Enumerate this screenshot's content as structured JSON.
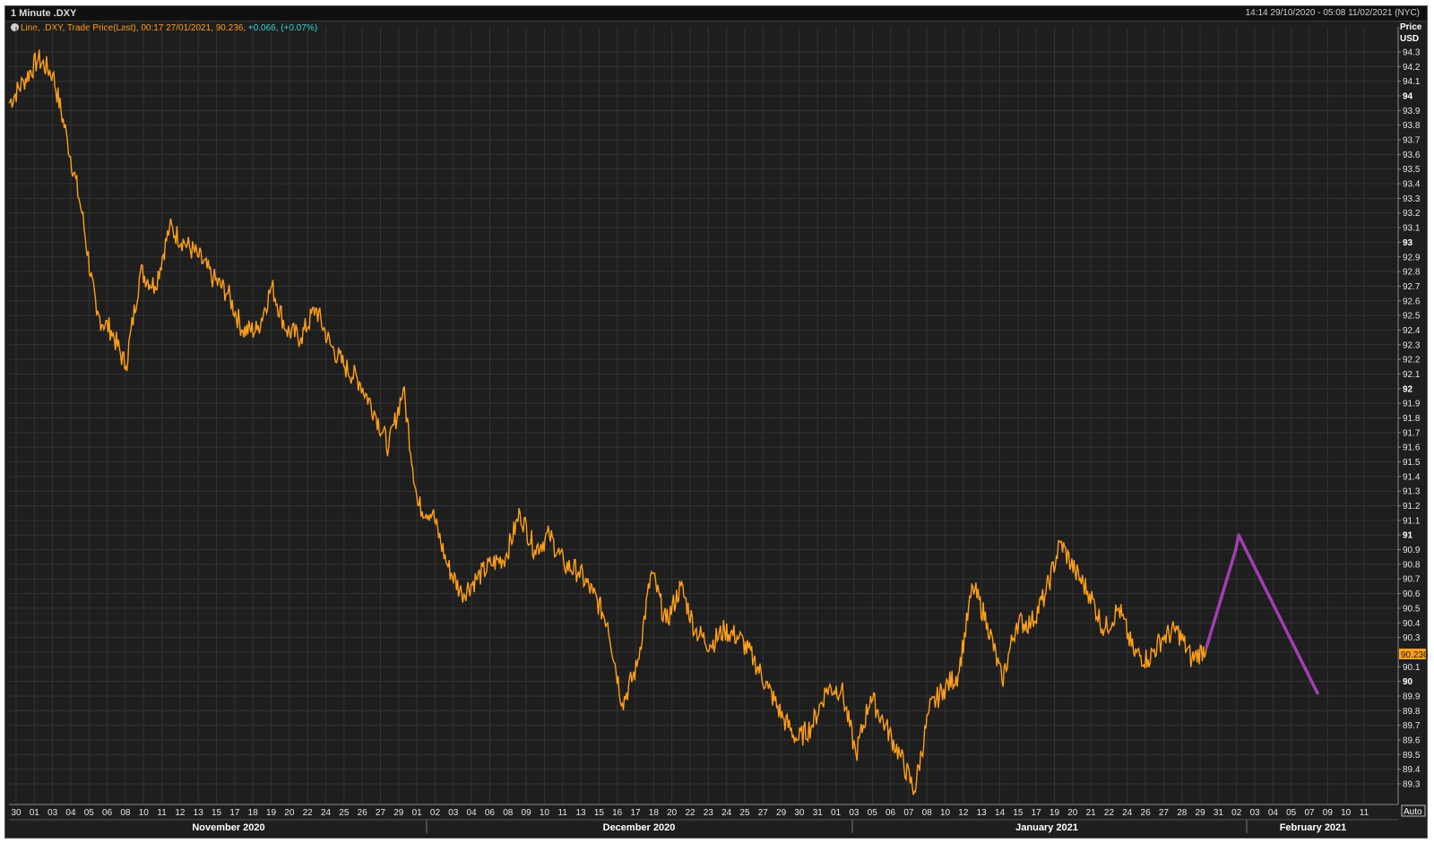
{
  "window": {
    "title": "1 Minute .DXY",
    "range_text": "14:14 29/10/2020 - 05:08 11/02/2021 (NYC)"
  },
  "legend": {
    "text": "Line, .DXY, Trade Price(Last), 00:17 27/01/2021, 90.236,",
    "change": " +0.066, (+0.07%)"
  },
  "axis": {
    "price_label": "Price",
    "currency_label": "USD",
    "auto_label": "Auto",
    "last_price_label": "90.236"
  },
  "colors": {
    "background": "#1e1e1e",
    "grid": "#333333",
    "series": "#ff9f1a",
    "projection": "#a040b0",
    "last_price_tag": "#ff9f1a"
  },
  "chart_data": {
    "type": "line",
    "ylim": [
      89.2,
      94.35
    ],
    "y_ticks": [
      "94.3",
      "94.2",
      "94.1",
      "94",
      "93.9",
      "93.8",
      "93.7",
      "93.6",
      "93.5",
      "93.4",
      "93.3",
      "93.2",
      "93.1",
      "93",
      "92.9",
      "92.8",
      "92.7",
      "92.6",
      "92.5",
      "92.4",
      "92.3",
      "92.2",
      "92.1",
      "92",
      "91.9",
      "91.8",
      "91.7",
      "91.6",
      "91.5",
      "91.4",
      "91.3",
      "91.2",
      "91.1",
      "91",
      "90.9",
      "90.8",
      "90.7",
      "90.6",
      "90.5",
      "90.4",
      "90.3",
      "90.2",
      "90.1",
      "90",
      "89.9",
      "89.8",
      "89.7",
      "89.6",
      "89.5",
      "89.4",
      "89.3"
    ],
    "x_day_ticks": [
      "30",
      "01",
      "03",
      "04",
      "05",
      "06",
      "08",
      "10",
      "11",
      "12",
      "13",
      "15",
      "17",
      "18",
      "19",
      "20",
      "22",
      "24",
      "25",
      "26",
      "27",
      "29",
      "01",
      "02",
      "03",
      "04",
      "06",
      "08",
      "09",
      "10",
      "11",
      "13",
      "15",
      "16",
      "17",
      "18",
      "20",
      "22",
      "23",
      "24",
      "25",
      "27",
      "29",
      "30",
      "31",
      "01",
      "03",
      "05",
      "06",
      "07",
      "08",
      "10",
      "12",
      "13",
      "14",
      "15",
      "17",
      "19",
      "20",
      "21",
      "22",
      "24",
      "26",
      "27",
      "28",
      "29",
      "31",
      "02",
      "03",
      "04",
      "05",
      "07",
      "09",
      "10",
      "11"
    ],
    "months": [
      "November 2020",
      "December 2020",
      "January 2021",
      "February 2021"
    ],
    "series": [
      {
        "values": [
          [
            0,
            93.95
          ],
          [
            1,
            94.1
          ],
          [
            2,
            94.25
          ],
          [
            3,
            94.15
          ],
          [
            4,
            93.7
          ],
          [
            5,
            93.2
          ],
          [
            6,
            92.5
          ],
          [
            7,
            92.4
          ],
          [
            8,
            92.15
          ],
          [
            9,
            92.8
          ],
          [
            10,
            92.7
          ],
          [
            11,
            93.1
          ],
          [
            12,
            93.0
          ],
          [
            13,
            92.9
          ],
          [
            14,
            92.75
          ],
          [
            15,
            92.65
          ],
          [
            16,
            92.4
          ],
          [
            17,
            92.4
          ],
          [
            18,
            92.7
          ],
          [
            19,
            92.4
          ],
          [
            20,
            92.35
          ],
          [
            21,
            92.55
          ],
          [
            22,
            92.3
          ],
          [
            23,
            92.15
          ],
          [
            24,
            92.05
          ],
          [
            25,
            91.85
          ],
          [
            26,
            91.6
          ],
          [
            27,
            92.0
          ],
          [
            28,
            91.2
          ],
          [
            29,
            91.15
          ],
          [
            30,
            90.8
          ],
          [
            31,
            90.6
          ],
          [
            32,
            90.7
          ],
          [
            33,
            90.8
          ],
          [
            34,
            90.85
          ],
          [
            35,
            91.15
          ],
          [
            36,
            90.9
          ],
          [
            37,
            91.0
          ],
          [
            38,
            90.8
          ],
          [
            39,
            90.75
          ],
          [
            40,
            90.6
          ],
          [
            41,
            90.4
          ],
          [
            42,
            89.85
          ],
          [
            43,
            90.1
          ],
          [
            44,
            90.75
          ],
          [
            45,
            90.4
          ],
          [
            46,
            90.65
          ],
          [
            47,
            90.35
          ],
          [
            48,
            90.25
          ],
          [
            49,
            90.35
          ],
          [
            50,
            90.3
          ],
          [
            51,
            90.15
          ],
          [
            52,
            89.95
          ],
          [
            53,
            89.75
          ],
          [
            54,
            89.6
          ],
          [
            55,
            89.7
          ],
          [
            56,
            89.95
          ],
          [
            57,
            89.95
          ],
          [
            58,
            89.5
          ],
          [
            59,
            89.9
          ],
          [
            60,
            89.7
          ],
          [
            61,
            89.5
          ],
          [
            62,
            89.25
          ],
          [
            63,
            89.8
          ],
          [
            64,
            89.95
          ],
          [
            65,
            90.05
          ],
          [
            66,
            90.65
          ],
          [
            67,
            90.4
          ],
          [
            68,
            90.0
          ],
          [
            69,
            90.4
          ],
          [
            70,
            90.4
          ],
          [
            71,
            90.6
          ],
          [
            72,
            90.95
          ],
          [
            73,
            90.75
          ],
          [
            74,
            90.6
          ],
          [
            75,
            90.35
          ],
          [
            76,
            90.5
          ],
          [
            77,
            90.2
          ],
          [
            78,
            90.15
          ],
          [
            79,
            90.3
          ],
          [
            80,
            90.35
          ],
          [
            81,
            90.15
          ],
          [
            82,
            90.236
          ]
        ]
      }
    ],
    "projection": [
      [
        82,
        90.236
      ],
      [
        84,
        90.9
      ],
      [
        84.2,
        91.0
      ],
      [
        89.6,
        89.92
      ]
    ]
  }
}
